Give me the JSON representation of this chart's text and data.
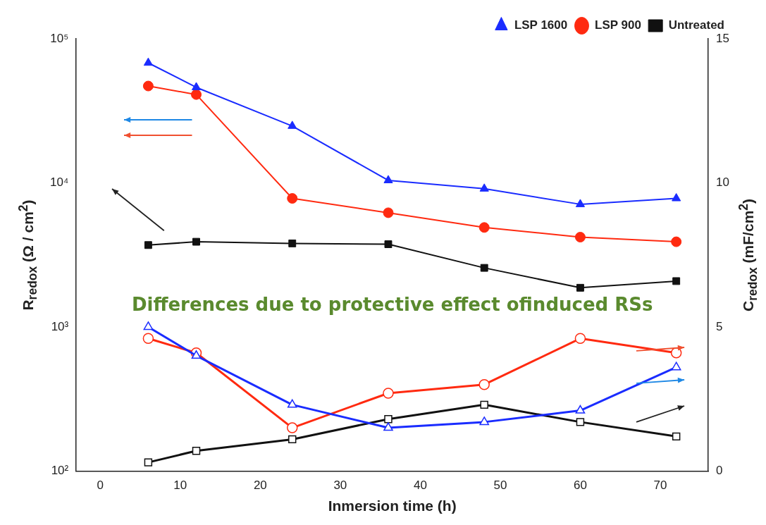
{
  "chart_data": {
    "type": "line",
    "xlabel": "Inmersion time (h)",
    "ylabel": "R$_{redox}$ (Ω / cm$^{2}$)",
    "y2label": "C$_{redox}$ (mF/cm$^{2}$)",
    "x": [
      6,
      12,
      24,
      36,
      48,
      60,
      72
    ],
    "xlim": [
      -3,
      76
    ],
    "xticks": [
      0,
      10,
      20,
      30,
      40,
      50,
      60,
      70
    ],
    "ylim": [
      100,
      100000
    ],
    "yticks": [
      {
        "value": 100,
        "label": "10²"
      },
      {
        "value": 1000,
        "label": "10³"
      },
      {
        "value": 10000,
        "label": "10⁴"
      },
      {
        "value": 100000,
        "label": "10⁵"
      }
    ],
    "y2lim": [
      0,
      15
    ],
    "y2ticks": [
      0,
      5,
      10,
      15
    ],
    "log": "y",
    "grid": false,
    "legend": "top right",
    "annotations": [
      "Differences due to protective effect ofinduced RSs"
    ],
    "series": [
      {
        "name": "LSP 1600",
        "color": "#1a2cff",
        "marker": "triangle",
        "values": [
          68000,
          46000,
          24800,
          10400,
          9100,
          7100,
          7800
        ]
      },
      {
        "name": "LSP 900",
        "color": "#ff2a10",
        "marker": "circle",
        "values": [
          47000,
          41000,
          7800,
          6200,
          4900,
          4200,
          3900
        ]
      },
      {
        "name": "Untreated",
        "color": "#111111",
        "marker": "square",
        "values": [
          3700,
          3900,
          3800,
          3750,
          2570,
          1870,
          2080
        ]
      },
      {
        "color": "#1a2cff",
        "marker": "triangle",
        "axis": "y2",
        "values": [
          5.0,
          4.0,
          2.3,
          1.5,
          1.7,
          2.1,
          3.6
        ]
      },
      {
        "color": "#ff2a10",
        "marker": "circle",
        "axis": "y2",
        "values": [
          4.6,
          4.1,
          1.5,
          2.7,
          3.0,
          4.6,
          4.1
        ]
      },
      {
        "color": "#111111",
        "marker": "square",
        "axis": "y2",
        "values": [
          0.3,
          0.7,
          1.1,
          1.8,
          2.3,
          1.7,
          1.2
        ]
      }
    ]
  }
}
